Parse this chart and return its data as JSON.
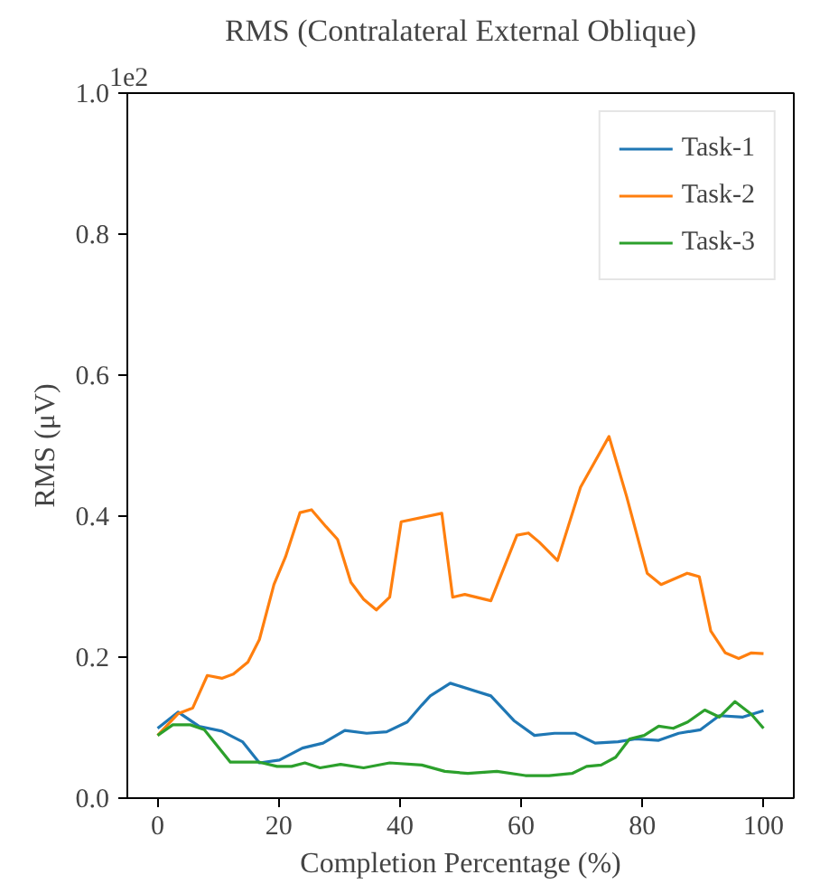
{
  "chart_data": {
    "type": "line",
    "title": "RMS (Contralateral External Oblique)",
    "xlabel": "Completion Percentage (%)",
    "ylabel": "RMS (μV)",
    "annotations": [
      "1e2"
    ],
    "xlim": [
      -5,
      105
    ],
    "ylim": [
      0,
      1.0
    ],
    "xticks": [
      0,
      20,
      40,
      60,
      80,
      100
    ],
    "yticks": [
      {
        "value": 0,
        "label": "0.0"
      },
      0.2,
      0.4,
      0.6,
      0.8,
      {
        "value": 1.0,
        "label": "1.0"
      }
    ],
    "grid": false,
    "legend": "top right",
    "marker": "none",
    "line_style": "solid",
    "series": [
      {
        "name": "Task-1",
        "color": "#1f77b4",
        "x": [
          0,
          3.4,
          6.8,
          10.6,
          14,
          16.8,
          20.1,
          23.9,
          27.3,
          30.9,
          34.5,
          37.8,
          41.2,
          43.6,
          45,
          48.3,
          55,
          58.8,
          62.2,
          65.5,
          68.9,
          72.2,
          76,
          78.9,
          82.7,
          86,
          89.6,
          92.7,
          96.6,
          100
        ],
        "values": [
          0.099,
          0.122,
          0.102,
          0.095,
          0.08,
          0.05,
          0.054,
          0.071,
          0.078,
          0.096,
          0.092,
          0.094,
          0.108,
          0.132,
          0.145,
          0.163,
          0.145,
          0.11,
          0.089,
          0.092,
          0.092,
          0.078,
          0.08,
          0.084,
          0.082,
          0.092,
          0.097,
          0.117,
          0.115,
          0.124
        ]
      },
      {
        "name": "Task-2",
        "color": "#ff7f0e",
        "x": [
          0,
          3.4,
          5.8,
          8.2,
          10.6,
          12.5,
          14.9,
          16.8,
          19.2,
          21.1,
          23.5,
          25.4,
          27.8,
          29.7,
          31.9,
          34,
          36.1,
          38.3,
          40.2,
          46.9,
          48.7,
          50.7,
          55,
          59.3,
          61.2,
          63,
          66,
          69.8,
          74.5,
          77.4,
          80.8,
          83.1,
          87.4,
          89.4,
          91.3,
          93.7,
          95.9,
          98,
          100
        ],
        "values": [
          0.089,
          0.12,
          0.128,
          0.174,
          0.17,
          0.176,
          0.193,
          0.225,
          0.303,
          0.342,
          0.405,
          0.409,
          0.385,
          0.367,
          0.306,
          0.282,
          0.267,
          0.285,
          0.392,
          0.404,
          0.285,
          0.289,
          0.28,
          0.373,
          0.376,
          0.363,
          0.337,
          0.441,
          0.513,
          0.428,
          0.319,
          0.303,
          0.319,
          0.314,
          0.237,
          0.206,
          0.198,
          0.206,
          0.205
        ]
      },
      {
        "name": "Task-3",
        "color": "#2ca02c",
        "x": [
          0,
          2.5,
          5.4,
          7.7,
          12,
          16.8,
          19.7,
          22.1,
          24.3,
          26.8,
          30.2,
          34,
          38.3,
          43.6,
          47.4,
          51.2,
          56,
          60.7,
          64.6,
          68.4,
          70.8,
          73.2,
          75.6,
          77.9,
          80.3,
          82.7,
          85.1,
          87.5,
          90.3,
          92.7,
          95.3,
          98,
          100
        ],
        "values": [
          0.089,
          0.104,
          0.104,
          0.097,
          0.051,
          0.051,
          0.045,
          0.045,
          0.05,
          0.043,
          0.048,
          0.043,
          0.05,
          0.047,
          0.038,
          0.035,
          0.038,
          0.032,
          0.032,
          0.035,
          0.045,
          0.047,
          0.058,
          0.084,
          0.089,
          0.102,
          0.099,
          0.108,
          0.125,
          0.115,
          0.137,
          0.119,
          0.099
        ]
      }
    ]
  }
}
